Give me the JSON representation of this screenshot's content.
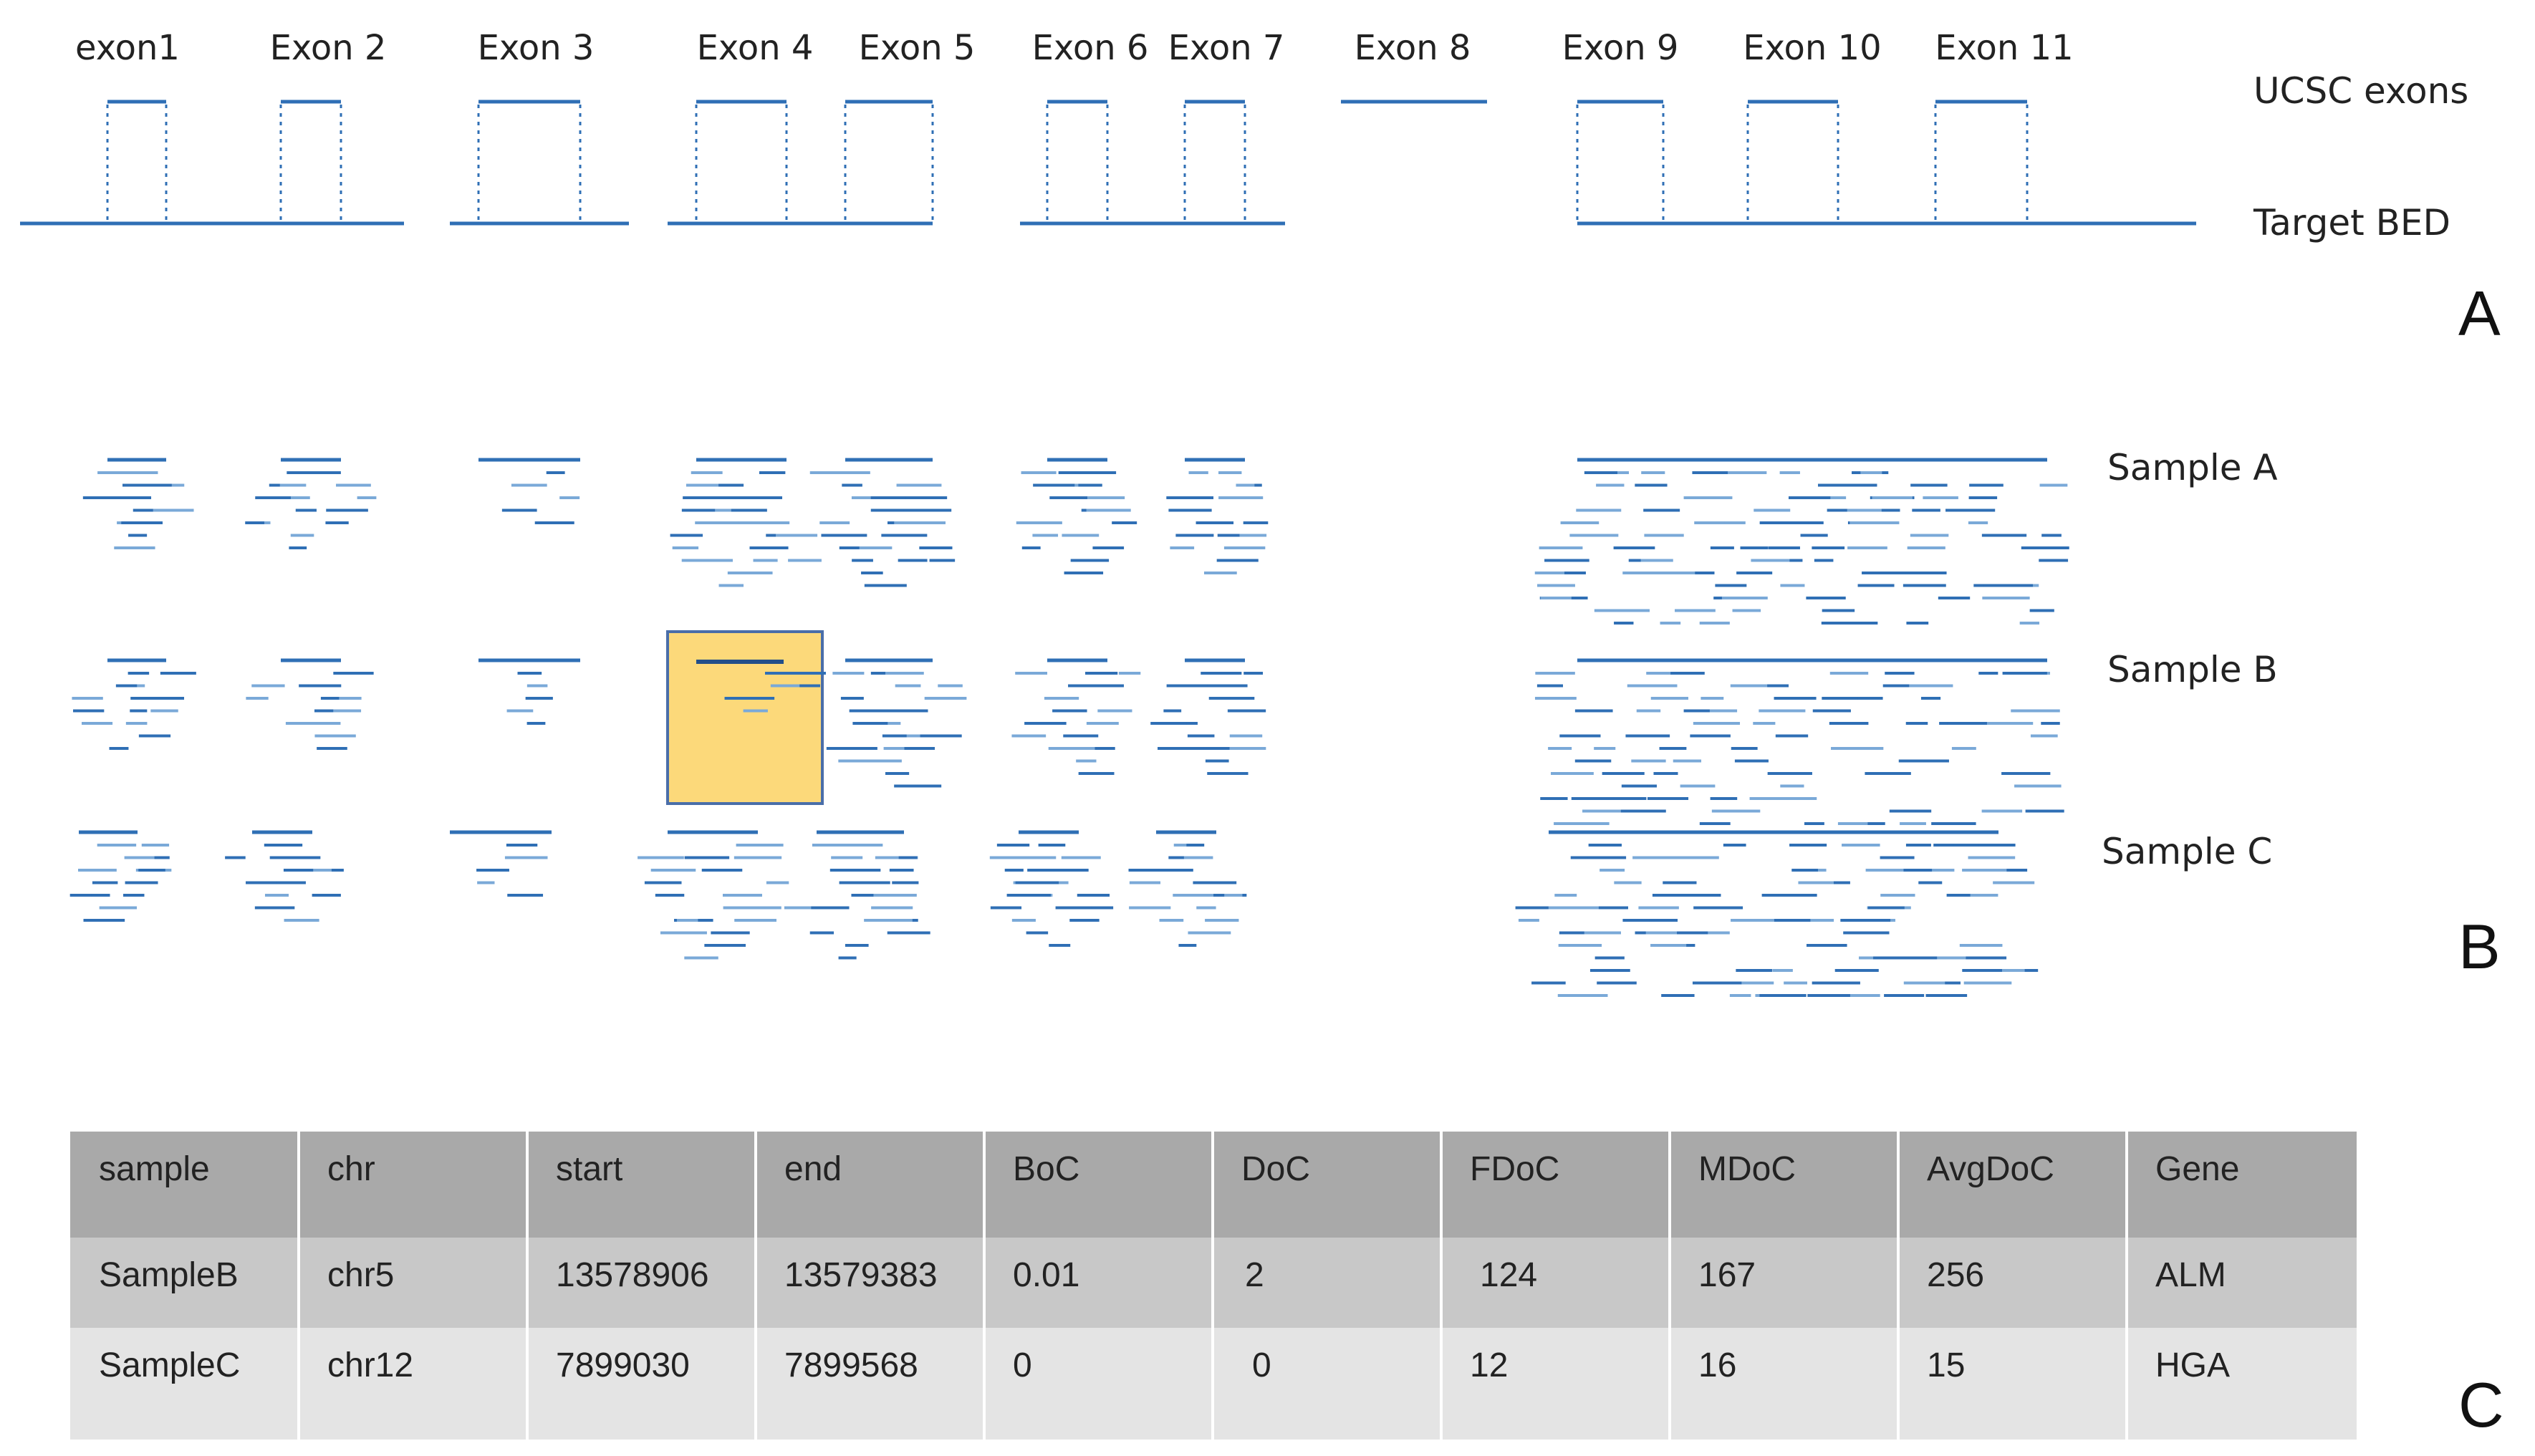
{
  "colors": {
    "line": "#2f6fb5",
    "read_dark": "#2f6fb5",
    "read_light": "#7aa9d8",
    "highlight_fill": "#fcd97a",
    "highlight_stroke": "#4a6ea9",
    "header_bg": "#a9a9a9",
    "row1_bg": "#c8c8c8",
    "row2_bg": "#e4e4e4"
  },
  "panel_a": {
    "exon_labels": [
      "exon1",
      "Exon 2",
      "Exon 3",
      "Exon 4",
      "Exon 5",
      "Exon 6",
      "Exon 7",
      "Exon 8",
      "Exon 9",
      "Exon 10",
      "Exon 11"
    ],
    "track_labels": [
      "UCSC exons",
      "Target BED"
    ],
    "letter": "A"
  },
  "panel_b": {
    "samples": [
      "Sample A",
      "Sample B",
      "Sample C"
    ],
    "letter": "B"
  },
  "panel_c": {
    "letter": "C",
    "table": {
      "headers": [
        "sample",
        "chr",
        "start",
        "end",
        "BoC",
        "DoC",
        "FDoC",
        "MDoC",
        "AvgDoC",
        "Gene"
      ],
      "rows": [
        [
          "SampleB",
          "chr5",
          "13578906",
          "13579383",
          "0.01",
          "2",
          "124",
          "167",
          "256",
          "ALM"
        ],
        [
          "SampleC",
          "chr12",
          "7899030",
          "7899568",
          "0",
          "0",
          "12",
          "16",
          "15",
          "HGA"
        ]
      ]
    }
  }
}
